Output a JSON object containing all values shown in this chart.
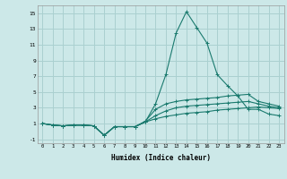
{
  "xlabel": "Humidex (Indice chaleur)",
  "bg_color": "#cce8e8",
  "grid_color": "#aad0d0",
  "line_color": "#1a7a6e",
  "x_values": [
    0,
    1,
    2,
    3,
    4,
    5,
    6,
    7,
    8,
    9,
    10,
    11,
    12,
    13,
    14,
    15,
    16,
    17,
    18,
    19,
    20,
    21,
    22,
    23
  ],
  "series1": [
    1.0,
    0.8,
    0.7,
    0.8,
    0.8,
    0.7,
    -0.5,
    0.6,
    0.6,
    0.6,
    1.2,
    3.5,
    7.2,
    12.5,
    15.2,
    13.2,
    11.2,
    7.2,
    5.8,
    4.5,
    2.8,
    2.8,
    2.2,
    2.0
  ],
  "series2": [
    1.0,
    0.8,
    0.7,
    0.8,
    0.8,
    0.7,
    -0.5,
    0.6,
    0.6,
    0.6,
    1.3,
    2.8,
    3.5,
    3.8,
    4.0,
    4.1,
    4.2,
    4.3,
    4.5,
    4.6,
    4.7,
    3.8,
    3.5,
    3.2
  ],
  "series3": [
    1.0,
    0.8,
    0.7,
    0.8,
    0.8,
    0.7,
    -0.5,
    0.6,
    0.6,
    0.6,
    1.2,
    2.0,
    2.6,
    3.0,
    3.2,
    3.3,
    3.4,
    3.5,
    3.6,
    3.7,
    3.8,
    3.5,
    3.2,
    3.0
  ],
  "series4": [
    1.0,
    0.8,
    0.7,
    0.8,
    0.8,
    0.7,
    -0.5,
    0.6,
    0.6,
    0.6,
    1.2,
    1.6,
    1.9,
    2.1,
    2.3,
    2.4,
    2.5,
    2.7,
    2.8,
    2.9,
    3.0,
    3.1,
    3.0,
    2.9
  ],
  "ylim": [
    -1.5,
    16
  ],
  "yticks": [
    -1,
    1,
    3,
    5,
    7,
    9,
    11,
    13,
    15
  ],
  "xlim": [
    -0.5,
    23.5
  ]
}
